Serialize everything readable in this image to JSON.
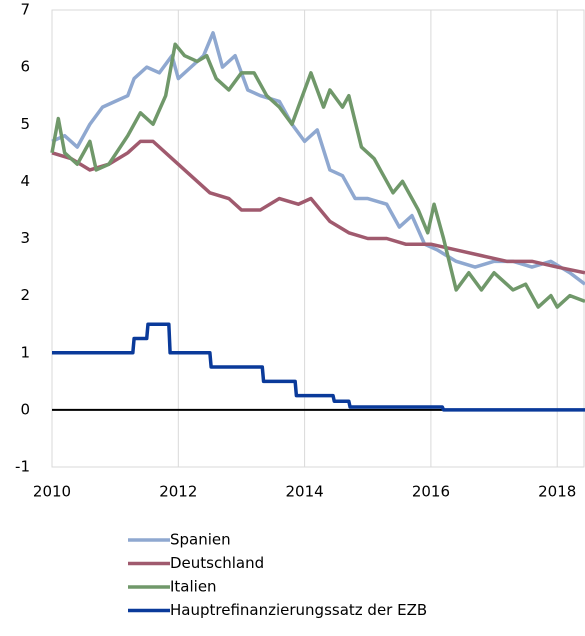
{
  "chart_data": {
    "type": "line",
    "xlim": [
      2010,
      2018.44
    ],
    "xticks": [
      2010,
      2012,
      2014,
      2016,
      2018
    ],
    "ylim": [
      -1,
      7
    ],
    "yticks": [
      -1,
      0,
      1,
      2,
      3,
      4,
      5,
      6,
      7
    ],
    "grid": true,
    "legend": "bottom",
    "series": [
      {
        "name": "Spanien",
        "color": "#8fa8d0",
        "x": [
          2010,
          2010.2,
          2010.4,
          2010.6,
          2010.8,
          2011.0,
          2011.2,
          2011.3,
          2011.5,
          2011.7,
          2011.9,
          2012.0,
          2012.2,
          2012.4,
          2012.55,
          2012.7,
          2012.9,
          2013.1,
          2013.3,
          2013.6,
          2013.8,
          2014.0,
          2014.2,
          2014.4,
          2014.6,
          2014.8,
          2015.0,
          2015.3,
          2015.5,
          2015.7,
          2015.9,
          2016.1,
          2016.4,
          2016.7,
          2017.0,
          2017.3,
          2017.6,
          2017.9,
          2018.2,
          2018.44
        ],
        "values": [
          4.7,
          4.8,
          4.6,
          5.0,
          5.3,
          5.4,
          5.5,
          5.8,
          6.0,
          5.9,
          6.2,
          5.8,
          6.0,
          6.2,
          6.6,
          6.0,
          6.2,
          5.6,
          5.5,
          5.4,
          5.0,
          4.7,
          4.9,
          4.2,
          4.1,
          3.7,
          3.7,
          3.6,
          3.2,
          3.4,
          2.9,
          2.8,
          2.6,
          2.5,
          2.6,
          2.6,
          2.5,
          2.6,
          2.4,
          2.2
        ]
      },
      {
        "name": "Deutschland",
        "color": "#a05a6e",
        "x": [
          2010,
          2010.3,
          2010.6,
          2010.9,
          2011.2,
          2011.4,
          2011.6,
          2011.9,
          2012.2,
          2012.5,
          2012.8,
          2013.0,
          2013.3,
          2013.6,
          2013.9,
          2014.1,
          2014.4,
          2014.7,
          2015.0,
          2015.3,
          2015.6,
          2016.0,
          2016.4,
          2016.8,
          2017.2,
          2017.6,
          2018.0,
          2018.44
        ],
        "values": [
          4.5,
          4.4,
          4.2,
          4.3,
          4.5,
          4.7,
          4.7,
          4.4,
          4.1,
          3.8,
          3.7,
          3.5,
          3.5,
          3.7,
          3.6,
          3.7,
          3.3,
          3.1,
          3.0,
          3.0,
          2.9,
          2.9,
          2.8,
          2.7,
          2.6,
          2.6,
          2.5,
          2.4
        ]
      },
      {
        "name": "Italien",
        "color": "#70986a",
        "x": [
          2010,
          2010.1,
          2010.2,
          2010.4,
          2010.6,
          2010.7,
          2010.9,
          2011.2,
          2011.4,
          2011.6,
          2011.8,
          2011.95,
          2012.1,
          2012.3,
          2012.45,
          2012.6,
          2012.8,
          2013.0,
          2013.2,
          2013.4,
          2013.6,
          2013.8,
          2014.0,
          2014.1,
          2014.3,
          2014.4,
          2014.6,
          2014.7,
          2014.9,
          2015.1,
          2015.4,
          2015.55,
          2015.8,
          2015.95,
          2016.05,
          2016.2,
          2016.4,
          2016.6,
          2016.8,
          2017.0,
          2017.3,
          2017.5,
          2017.7,
          2017.9,
          2018.0,
          2018.2,
          2018.44
        ],
        "values": [
          4.5,
          5.1,
          4.5,
          4.3,
          4.7,
          4.2,
          4.3,
          4.8,
          5.2,
          5.0,
          5.5,
          6.4,
          6.2,
          6.1,
          6.2,
          5.8,
          5.6,
          5.9,
          5.9,
          5.5,
          5.3,
          5.0,
          5.6,
          5.9,
          5.3,
          5.6,
          5.3,
          5.5,
          4.6,
          4.4,
          3.8,
          4.0,
          3.5,
          3.1,
          3.6,
          3.0,
          2.1,
          2.4,
          2.1,
          2.4,
          2.1,
          2.2,
          1.8,
          2.0,
          1.8,
          2.0,
          1.9
        ]
      },
      {
        "name": "Hauptrefinanzierungssatz der EZB",
        "color": "#0a3a9a",
        "x": [
          2010,
          2011.28,
          2011.3,
          2011.5,
          2011.52,
          2011.85,
          2011.87,
          2012.5,
          2012.52,
          2013.33,
          2013.35,
          2013.85,
          2013.87,
          2014.45,
          2014.47,
          2014.7,
          2014.72,
          2016.18,
          2016.2,
          2018.44
        ],
        "values": [
          1.0,
          1.0,
          1.25,
          1.25,
          1.5,
          1.5,
          1.0,
          1.0,
          0.75,
          0.75,
          0.5,
          0.5,
          0.25,
          0.25,
          0.15,
          0.15,
          0.05,
          0.05,
          0,
          0
        ]
      }
    ]
  }
}
